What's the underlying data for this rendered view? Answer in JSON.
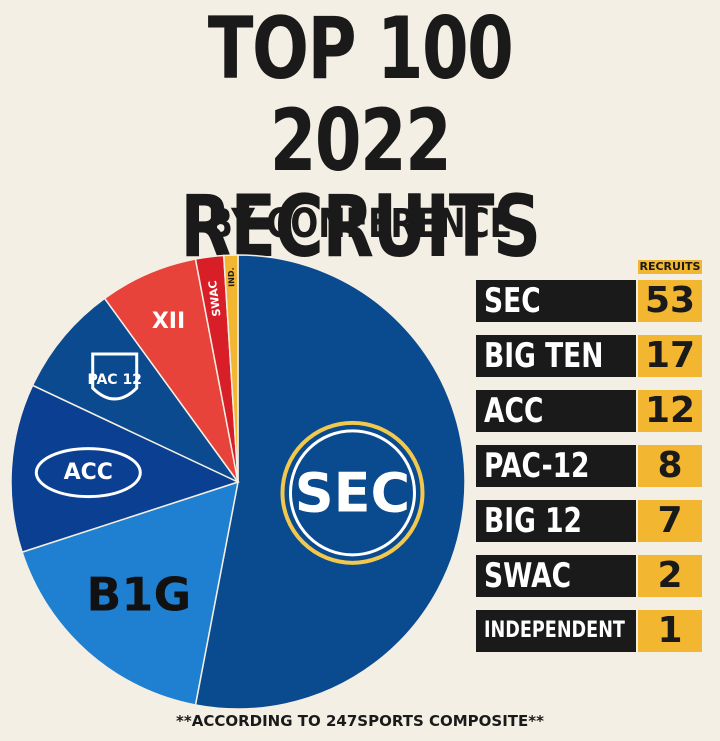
{
  "header": {
    "title_line1": "TOP 100",
    "title_line2": "2022 RECRUITS",
    "subtitle": "BY CONFERENCE"
  },
  "table": {
    "column_header": "RECRUITS",
    "rows": [
      {
        "name": "SEC",
        "value": "53"
      },
      {
        "name": "BIG TEN",
        "value": "17"
      },
      {
        "name": "ACC",
        "value": "12"
      },
      {
        "name": "PAC-12",
        "value": "8"
      },
      {
        "name": "BIG 12",
        "value": "7"
      },
      {
        "name": "SWAC",
        "value": "2"
      },
      {
        "name": "INDEPENDENT",
        "value": "1"
      }
    ]
  },
  "footnote": "**ACCORDING TO 247SPORTS COMPOSITE**",
  "colors": {
    "background": "#f3efe4",
    "accent": "#f2b631",
    "row_bg": "#1a1a1a"
  },
  "chart_data": {
    "type": "pie",
    "title": "TOP 100 2022 RECRUITS BY CONFERENCE",
    "series": [
      {
        "label": "SEC",
        "slice_label": "SEC",
        "value": 53,
        "color": "#0a4a8f"
      },
      {
        "label": "BIG TEN",
        "slice_label": "B1G",
        "value": 17,
        "color": "#1f7fd0"
      },
      {
        "label": "ACC",
        "slice_label": "ACC",
        "value": 12,
        "color": "#0a3f91"
      },
      {
        "label": "PAC-12",
        "slice_label": "PAC 12",
        "value": 8,
        "color": "#0c4a8f"
      },
      {
        "label": "BIG 12",
        "slice_label": "XII",
        "value": 7,
        "color": "#e8433a"
      },
      {
        "label": "SWAC",
        "slice_label": "SWAC",
        "value": 2,
        "color": "#d81e27"
      },
      {
        "label": "INDEPENDENT",
        "slice_label": "IND.",
        "value": 1,
        "color": "#f2b631"
      }
    ]
  }
}
